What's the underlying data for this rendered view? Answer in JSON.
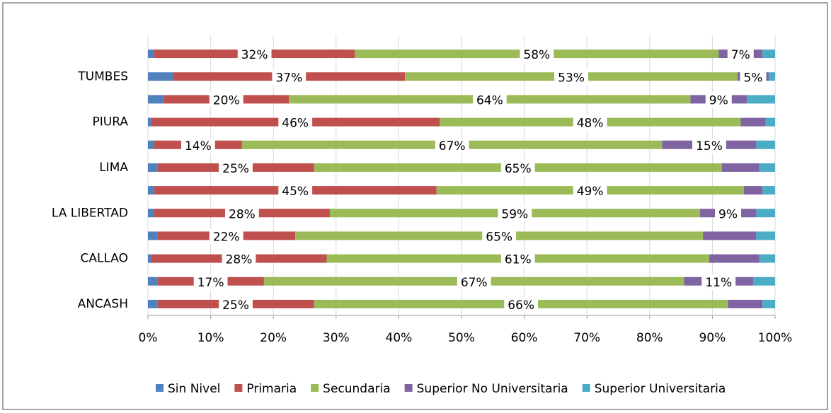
{
  "chart_data": {
    "type": "stacked_barh",
    "categories": [
      "ANCASH",
      null,
      "CALLAO",
      null,
      "LA LIBERTAD",
      null,
      "LIMA",
      null,
      "PIURA",
      null,
      "TUMBES",
      null
    ],
    "series": [
      {
        "name": "Sin Nivel",
        "color": "#4f81bd",
        "values": [
          1.5,
          1.5,
          0.5,
          1.5,
          1,
          1,
          1.5,
          1,
          0.5,
          2.5,
          4,
          1
        ]
      },
      {
        "name": "Primaria",
        "color": "#c0504d",
        "values": [
          25,
          17,
          28,
          22,
          28,
          45,
          25,
          14,
          46,
          20,
          37,
          32
        ],
        "value_labels": [
          "25%",
          "17%",
          "28%",
          "22%",
          "28%",
          "45%",
          "25%",
          "14%",
          "46%",
          "20%",
          "37%",
          "32%"
        ]
      },
      {
        "name": "Secundaria",
        "color": "#9bbb59",
        "values": [
          66,
          67,
          61,
          65,
          59,
          49,
          65,
          67,
          48,
          64,
          53,
          58
        ],
        "value_labels": [
          "66%",
          "67%",
          "61%",
          "65%",
          "59%",
          "49%",
          "65%",
          "67%",
          "48%",
          "64%",
          "53%",
          "58%"
        ]
      },
      {
        "name": "Superior No Universitaria",
        "color": "#8064a2",
        "values": [
          5.5,
          11,
          8,
          8.5,
          9,
          3,
          6,
          15,
          4,
          9,
          5,
          7
        ],
        "value_labels": [
          null,
          "11%",
          null,
          null,
          "9%",
          null,
          null,
          "15%",
          null,
          "9%",
          "5%",
          "7%"
        ]
      },
      {
        "name": "Superior Universitaria",
        "color": "#4bacc6",
        "values": [
          2,
          3.5,
          2.5,
          3,
          3,
          2,
          2.5,
          3,
          1.5,
          4.5,
          1,
          2
        ]
      }
    ],
    "xlim": [
      0,
      100
    ],
    "xticks": [
      {
        "value": 0,
        "label": "0%"
      },
      {
        "value": 10,
        "label": "10%"
      },
      {
        "value": 20,
        "label": "20%"
      },
      {
        "value": 30,
        "label": "30%"
      },
      {
        "value": 40,
        "label": "40%"
      },
      {
        "value": 50,
        "label": "50%"
      },
      {
        "value": 60,
        "label": "60%"
      },
      {
        "value": 70,
        "label": "70%"
      },
      {
        "value": 80,
        "label": "80%"
      },
      {
        "value": 90,
        "label": "90%"
      },
      {
        "value": 100,
        "label": "100%"
      }
    ],
    "grid": true,
    "legend": "bottom"
  }
}
